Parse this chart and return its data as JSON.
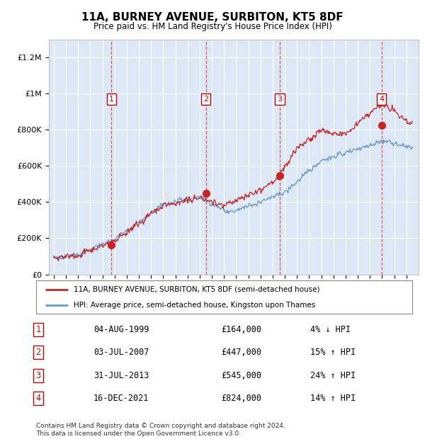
{
  "title": "11A, BURNEY AVENUE, SURBITON, KT5 8DF",
  "subtitle": "Price paid vs. HM Land Registry's House Price Index (HPI)",
  "background_color": "#dce8f5",
  "ylim": [
    0,
    1300000
  ],
  "yticks": [
    0,
    200000,
    400000,
    600000,
    800000,
    1000000,
    1200000
  ],
  "ytick_labels": [
    "£0",
    "£200K",
    "£400K",
    "£600K",
    "£800K",
    "£1M",
    "£1.2M"
  ],
  "sale_dates_num": [
    1999.75,
    2007.5,
    2013.58,
    2021.96
  ],
  "sale_prices": [
    164000,
    447000,
    545000,
    824000
  ],
  "sale_labels": [
    "1",
    "2",
    "3",
    "4"
  ],
  "sale_label_color": "#cc0000",
  "hpi_line_color": "#6699cc",
  "price_line_color": "#cc2222",
  "dashed_vline_color": "#dd4444",
  "footer_text": "Contains HM Land Registry data © Crown copyright and database right 2024.\nThis data is licensed under the Open Government Licence v3.0.",
  "legend_entries": [
    "11A, BURNEY AVENUE, SURBITON, KT5 8DF (semi-detached house)",
    "HPI: Average price, semi-detached house, Kingston upon Thames"
  ],
  "table_data": [
    [
      "1",
      "04-AUG-1999",
      "£164,000",
      "4% ↓ HPI"
    ],
    [
      "2",
      "03-JUL-2007",
      "£447,000",
      "15% ↑ HPI"
    ],
    [
      "3",
      "31-JUL-2013",
      "£545,000",
      "24% ↑ HPI"
    ],
    [
      "4",
      "16-DEC-2021",
      "£824,000",
      "14% ↑ HPI"
    ]
  ]
}
